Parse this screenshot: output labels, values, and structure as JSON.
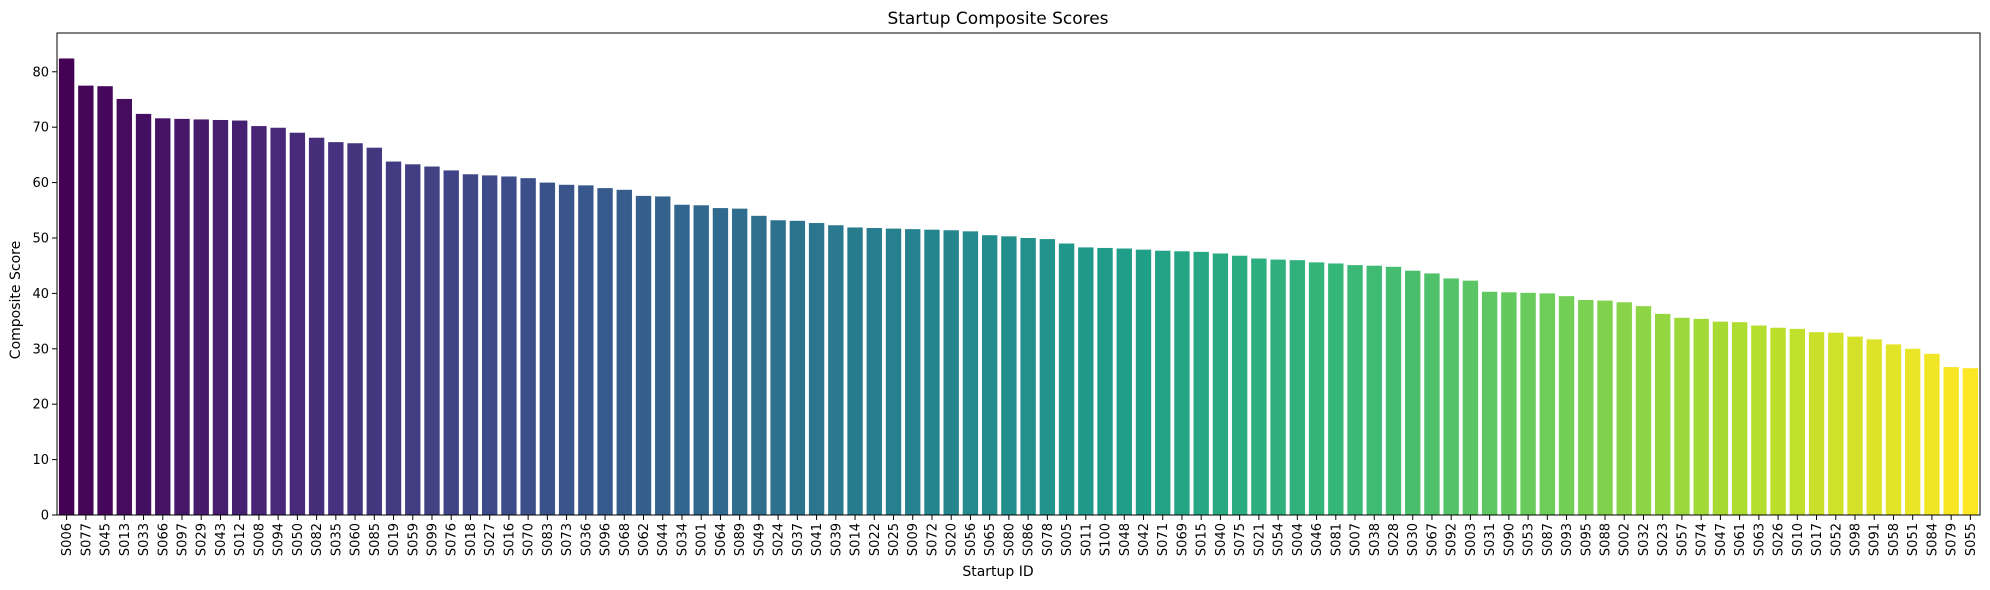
{
  "chart_data": {
    "type": "bar",
    "title": "Startup Composite Scores",
    "xlabel": "Startup ID",
    "ylabel": "Composite Score",
    "ylim": [
      0,
      87
    ],
    "yticks": [
      0,
      10,
      20,
      30,
      40,
      50,
      60,
      70,
      80
    ],
    "grid": false,
    "colormap": "viridis",
    "categories": [
      "S006",
      "S077",
      "S045",
      "S013",
      "S033",
      "S066",
      "S097",
      "S029",
      "S043",
      "S012",
      "S008",
      "S094",
      "S050",
      "S082",
      "S035",
      "S060",
      "S085",
      "S019",
      "S059",
      "S099",
      "S076",
      "S018",
      "S027",
      "S016",
      "S070",
      "S083",
      "S073",
      "S036",
      "S096",
      "S068",
      "S062",
      "S044",
      "S034",
      "S001",
      "S064",
      "S089",
      "S049",
      "S024",
      "S037",
      "S041",
      "S039",
      "S014",
      "S022",
      "S025",
      "S009",
      "S072",
      "S020",
      "S056",
      "S065",
      "S080",
      "S086",
      "S078",
      "S005",
      "S011",
      "S100",
      "S048",
      "S042",
      "S071",
      "S069",
      "S015",
      "S040",
      "S075",
      "S021",
      "S054",
      "S004",
      "S046",
      "S081",
      "S007",
      "S038",
      "S028",
      "S030",
      "S067",
      "S092",
      "S003",
      "S031",
      "S090",
      "S053",
      "S087",
      "S093",
      "S095",
      "S088",
      "S002",
      "S032",
      "S023",
      "S057",
      "S074",
      "S047",
      "S061",
      "S063",
      "S026",
      "S010",
      "S017",
      "S052",
      "S098",
      "S091",
      "S058",
      "S051",
      "S084",
      "S079",
      "S055"
    ],
    "values": [
      82.4,
      77.5,
      77.4,
      75.1,
      72.4,
      71.6,
      71.5,
      71.4,
      71.3,
      71.2,
      70.2,
      69.9,
      69.0,
      68.1,
      67.3,
      67.1,
      66.3,
      63.8,
      63.3,
      62.9,
      62.2,
      61.5,
      61.3,
      61.1,
      60.8,
      60.0,
      59.6,
      59.5,
      59.0,
      58.7,
      57.6,
      57.5,
      56.0,
      55.9,
      55.4,
      55.3,
      54.0,
      53.2,
      53.1,
      52.7,
      52.3,
      51.9,
      51.8,
      51.7,
      51.6,
      51.5,
      51.4,
      51.2,
      50.5,
      50.3,
      50.0,
      49.8,
      49.0,
      48.3,
      48.2,
      48.1,
      47.9,
      47.7,
      47.6,
      47.5,
      47.2,
      46.8,
      46.3,
      46.1,
      46.0,
      45.6,
      45.4,
      45.1,
      45.0,
      44.8,
      44.1,
      43.6,
      42.7,
      42.3,
      40.3,
      40.2,
      40.1,
      40.0,
      39.5,
      38.8,
      38.7,
      38.4,
      37.7,
      36.3,
      35.6,
      35.4,
      34.9,
      34.8,
      34.2,
      33.8,
      33.6,
      33.0,
      32.9,
      32.2,
      31.7,
      30.8,
      30.0,
      29.1,
      26.7,
      26.5
    ]
  }
}
